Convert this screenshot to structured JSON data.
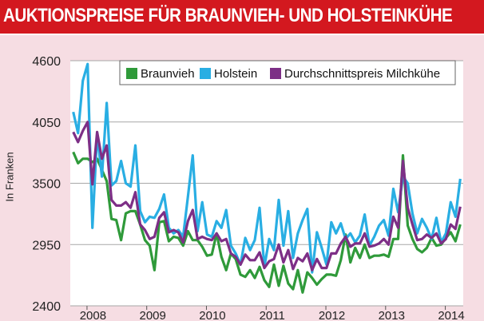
{
  "header": {
    "title": "AUKTIONSPREISE FÜR BRAUNVIEH- UND HOLSTEINKÜHE"
  },
  "chart_data": {
    "type": "line",
    "title": "AUKTIONSPREISE FÜR BRAUNVIEH- UND HOLSTEINKÜHE",
    "xlabel": "",
    "ylabel": "In Franken",
    "xlim": [
      2007.72,
      2014.3
    ],
    "ylim": [
      2400,
      4600
    ],
    "yticks": [
      2400,
      2950,
      3500,
      4050,
      4600
    ],
    "xticks": [
      "2008",
      "2009",
      "2010",
      "2011",
      "2012",
      "2013",
      "2014"
    ],
    "grid": "horizontal",
    "legend": "top",
    "series": [
      {
        "name": "Braunvieh",
        "color": "#2f9a3a",
        "x": [
          2007.77,
          2007.85,
          2007.93,
          2008.01,
          2008.09,
          2008.17,
          2008.25,
          2008.33,
          2008.41,
          2008.49,
          2008.57,
          2008.65,
          2008.73,
          2008.81,
          2008.89,
          2008.97,
          2009.05,
          2009.13,
          2009.21,
          2009.29,
          2009.37,
          2009.45,
          2009.53,
          2009.61,
          2009.69,
          2009.77,
          2009.85,
          2009.93,
          2010.01,
          2010.09,
          2010.17,
          2010.25,
          2010.33,
          2010.41,
          2010.49,
          2010.57,
          2010.65,
          2010.73,
          2010.81,
          2010.89,
          2010.97,
          2011.05,
          2011.13,
          2011.21,
          2011.29,
          2011.37,
          2011.45,
          2011.53,
          2011.61,
          2011.69,
          2011.77,
          2011.85,
          2011.93,
          2012.01,
          2012.09,
          2012.17,
          2012.25,
          2012.33,
          2012.41,
          2012.49,
          2012.57,
          2012.65,
          2012.73,
          2012.81,
          2012.89,
          2012.97,
          2013.05,
          2013.13,
          2013.21,
          2013.29,
          2013.37,
          2013.45,
          2013.53,
          2013.61,
          2013.69,
          2013.77,
          2013.85,
          2013.93,
          2014.01,
          2014.09,
          2014.17,
          2014.25
        ],
        "values": [
          3780,
          3680,
          3720,
          3720,
          3690,
          3720,
          3620,
          3520,
          3180,
          3170,
          2990,
          3230,
          3250,
          3250,
          3130,
          2990,
          2940,
          2720,
          3150,
          3160,
          2980,
          3020,
          3010,
          2940,
          3070,
          2990,
          2990,
          2930,
          2850,
          2860,
          3050,
          2840,
          2720,
          2870,
          2820,
          2680,
          2660,
          2720,
          2650,
          2750,
          2630,
          2570,
          2770,
          2580,
          2760,
          2600,
          2550,
          2720,
          2520,
          2700,
          2650,
          2590,
          2640,
          2680,
          2680,
          2670,
          2810,
          3040,
          2790,
          2920,
          2830,
          2950,
          2830,
          2850,
          2850,
          2860,
          2840,
          3000,
          3000,
          3750,
          3120,
          3000,
          2910,
          2880,
          2920,
          3010,
          2940,
          2950,
          3010,
          3060,
          2980,
          3130
        ]
      },
      {
        "name": "Holstein",
        "color": "#29aee3",
        "x": [
          2007.77,
          2007.85,
          2007.93,
          2008.01,
          2008.09,
          2008.17,
          2008.25,
          2008.33,
          2008.41,
          2008.49,
          2008.57,
          2008.65,
          2008.73,
          2008.81,
          2008.89,
          2008.97,
          2009.05,
          2009.13,
          2009.21,
          2009.29,
          2009.37,
          2009.45,
          2009.53,
          2009.61,
          2009.69,
          2009.77,
          2009.85,
          2009.93,
          2010.01,
          2010.09,
          2010.17,
          2010.25,
          2010.33,
          2010.41,
          2010.49,
          2010.57,
          2010.65,
          2010.73,
          2010.81,
          2010.89,
          2010.97,
          2011.05,
          2011.13,
          2011.21,
          2011.29,
          2011.37,
          2011.45,
          2011.53,
          2011.61,
          2011.69,
          2011.77,
          2011.85,
          2011.93,
          2012.01,
          2012.09,
          2012.17,
          2012.25,
          2012.33,
          2012.41,
          2012.49,
          2012.57,
          2012.65,
          2012.73,
          2012.81,
          2012.89,
          2012.97,
          2013.05,
          2013.13,
          2013.21,
          2013.29,
          2013.37,
          2013.45,
          2013.53,
          2013.61,
          2013.69,
          2013.77,
          2013.85,
          2013.93,
          2014.01,
          2014.09,
          2014.17,
          2014.25
        ],
        "values": [
          4140,
          3950,
          4420,
          4570,
          3100,
          3940,
          3560,
          4220,
          3480,
          3520,
          3700,
          3500,
          3470,
          3840,
          3250,
          3150,
          3200,
          3190,
          3270,
          3400,
          3100,
          3050,
          3080,
          3020,
          3380,
          3750,
          3070,
          3330,
          3040,
          3020,
          3160,
          3100,
          3260,
          2940,
          2870,
          2770,
          3010,
          2900,
          2990,
          3280,
          2750,
          3000,
          2900,
          3350,
          2940,
          3250,
          2830,
          3050,
          3170,
          3270,
          2700,
          3060,
          2920,
          2770,
          3150,
          3050,
          3140,
          3000,
          3050,
          2970,
          3030,
          3220,
          2940,
          3020,
          3120,
          3170,
          3030,
          3450,
          3240,
          3560,
          3500,
          3230,
          3050,
          3180,
          3100,
          3000,
          3190,
          2970,
          3050,
          3330,
          3200,
          3540
        ]
      },
      {
        "name": "Durchschnittspreis Milchkühe",
        "color": "#7d2f86",
        "x": [
          2007.77,
          2007.85,
          2007.93,
          2008.01,
          2008.09,
          2008.17,
          2008.25,
          2008.33,
          2008.41,
          2008.49,
          2008.57,
          2008.65,
          2008.73,
          2008.81,
          2008.89,
          2008.97,
          2009.05,
          2009.13,
          2009.21,
          2009.29,
          2009.37,
          2009.45,
          2009.53,
          2009.61,
          2009.69,
          2009.77,
          2009.85,
          2009.93,
          2010.01,
          2010.09,
          2010.17,
          2010.25,
          2010.33,
          2010.41,
          2010.49,
          2010.57,
          2010.65,
          2010.73,
          2010.81,
          2010.89,
          2010.97,
          2011.05,
          2011.13,
          2011.21,
          2011.29,
          2011.37,
          2011.45,
          2011.53,
          2011.61,
          2011.69,
          2011.77,
          2011.85,
          2011.93,
          2012.01,
          2012.09,
          2012.17,
          2012.25,
          2012.33,
          2012.41,
          2012.49,
          2012.57,
          2012.65,
          2012.73,
          2012.81,
          2012.89,
          2012.97,
          2013.05,
          2013.13,
          2013.21,
          2013.29,
          2013.37,
          2013.45,
          2013.53,
          2013.61,
          2013.69,
          2013.77,
          2013.85,
          2013.93,
          2014.01,
          2014.09,
          2014.17,
          2014.25
        ],
        "values": [
          3960,
          3870,
          3970,
          4050,
          3490,
          3960,
          3720,
          3840,
          3350,
          3300,
          3300,
          3330,
          3280,
          3420,
          3130,
          3080,
          3000,
          3020,
          3190,
          3240,
          3060,
          3080,
          3060,
          2970,
          3160,
          3260,
          3000,
          3020,
          3000,
          2990,
          3050,
          2980,
          3000,
          2870,
          2840,
          2770,
          2860,
          2810,
          2810,
          2880,
          2740,
          2800,
          2820,
          2950,
          2790,
          2900,
          2730,
          2830,
          2800,
          2870,
          2720,
          2820,
          2740,
          2740,
          2870,
          2870,
          2960,
          3020,
          2930,
          2960,
          2960,
          3050,
          2930,
          2940,
          2960,
          3000,
          2950,
          3200,
          3100,
          3700,
          3280,
          3130,
          2990,
          3000,
          3040,
          3010,
          3050,
          2960,
          3000,
          3130,
          3090,
          3290
        ]
      }
    ]
  }
}
